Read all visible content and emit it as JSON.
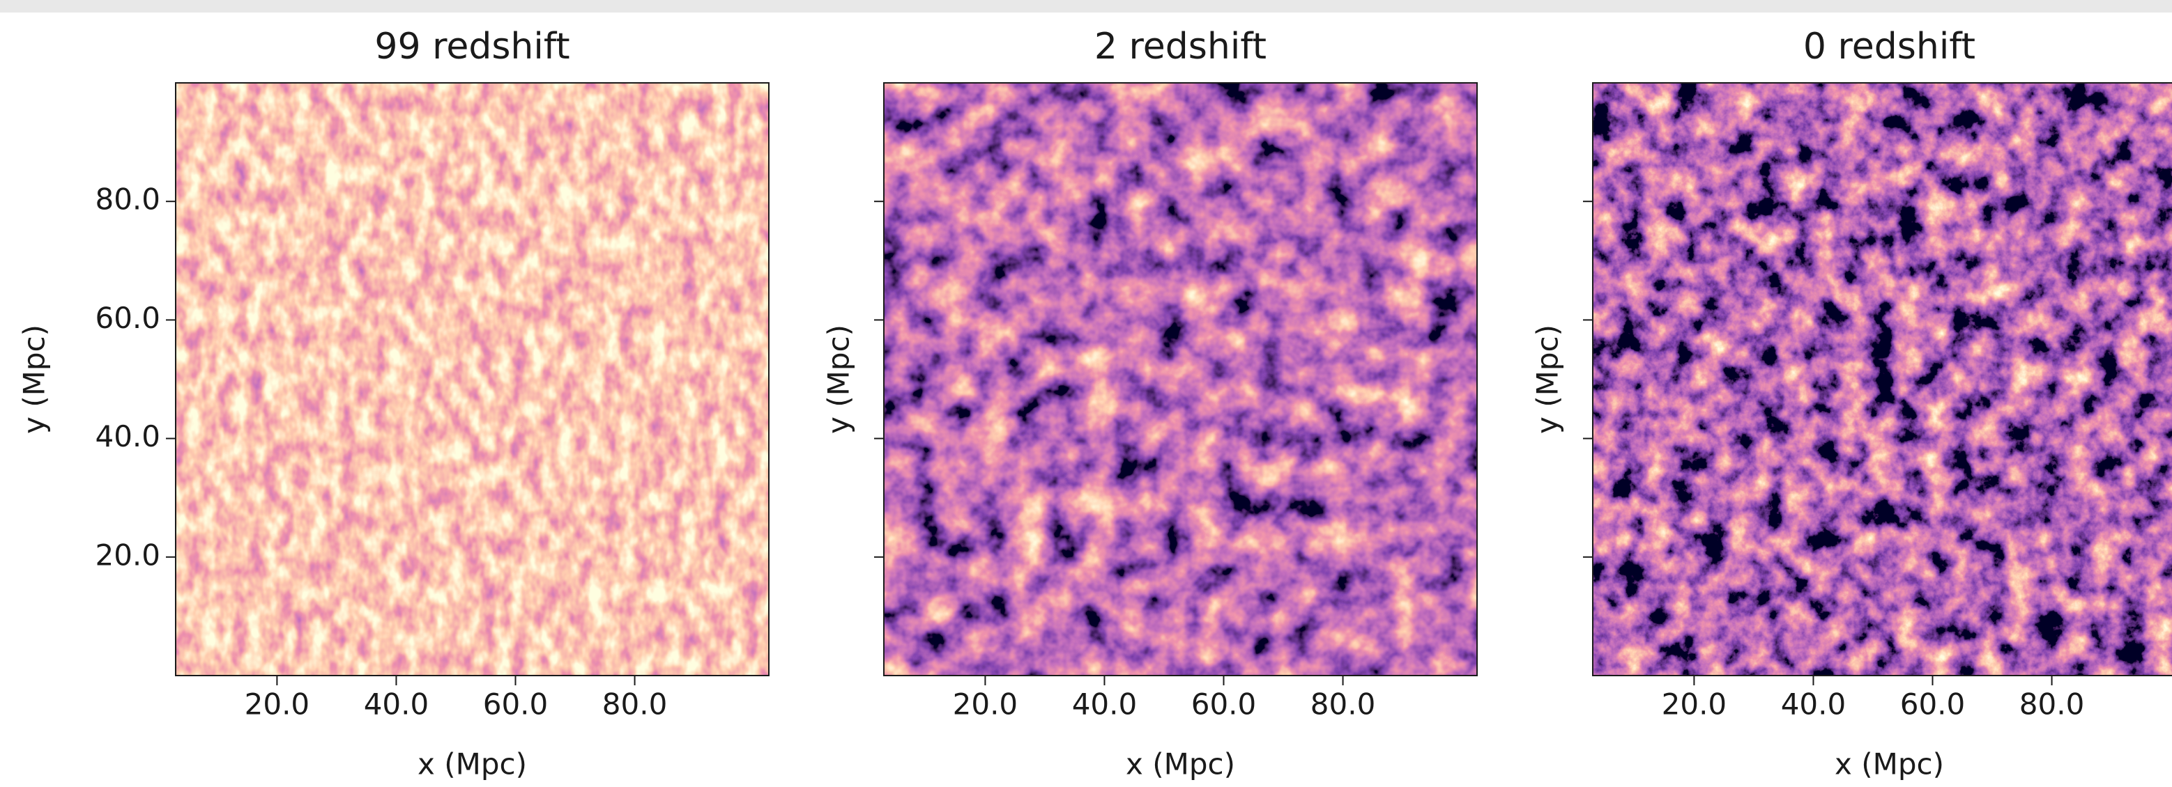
{
  "chart_data": [
    {
      "type": "heatmap",
      "title": "99 redshift",
      "xlabel": "x (Mpc)",
      "ylabel": "y (Mpc)",
      "colormap": "magma",
      "xlim": [
        3,
        102.5
      ],
      "ylim": [
        0,
        100
      ],
      "xticks": [
        {
          "value": 20,
          "label": "20.0"
        },
        {
          "value": 40,
          "label": "40.0"
        },
        {
          "value": 60,
          "label": "60.0"
        },
        {
          "value": 80,
          "label": "80.0"
        }
      ],
      "yticks": [
        {
          "value": 20,
          "label": "20.0"
        },
        {
          "value": 40,
          "label": "40.0"
        },
        {
          "value": 60,
          "label": "60.0"
        },
        {
          "value": 80,
          "label": "80.0"
        }
      ],
      "show_ytick_labels": true
    },
    {
      "type": "heatmap",
      "title": "2 redshift",
      "xlabel": "x (Mpc)",
      "ylabel": "y (Mpc)",
      "colormap": "magma",
      "xlim": [
        3,
        102.5
      ],
      "ylim": [
        0,
        100
      ],
      "xticks": [
        {
          "value": 20,
          "label": "20.0"
        },
        {
          "value": 40,
          "label": "40.0"
        },
        {
          "value": 60,
          "label": "60.0"
        },
        {
          "value": 80,
          "label": "80.0"
        }
      ],
      "yticks": [
        20,
        40,
        60,
        80
      ],
      "show_ytick_labels": false
    },
    {
      "type": "heatmap",
      "title": "0 redshift",
      "xlabel": "x (Mpc)",
      "ylabel": "y (Mpc)",
      "colormap": "magma",
      "xlim": [
        3,
        102.5
      ],
      "ylim": [
        0,
        100
      ],
      "xticks": [
        {
          "value": 20,
          "label": "20.0"
        },
        {
          "value": 40,
          "label": "40.0"
        },
        {
          "value": 60,
          "label": "60.0"
        },
        {
          "value": 80,
          "label": "80.0"
        }
      ],
      "yticks": [
        20,
        40,
        60,
        80
      ],
      "show_ytick_labels": false
    }
  ]
}
